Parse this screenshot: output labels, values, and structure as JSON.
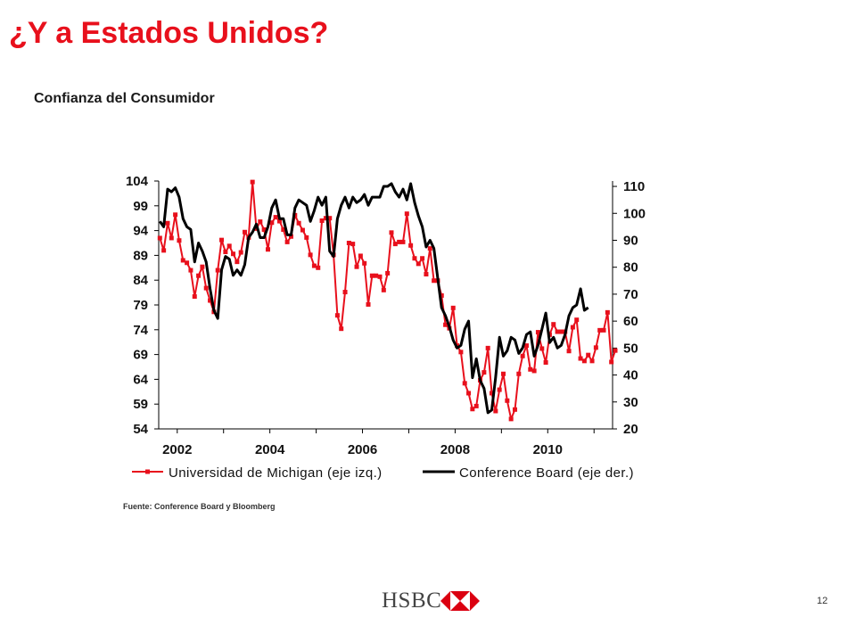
{
  "slide": {
    "title": "¿Y a Estados Unidos?",
    "subtitle": "Confianza del Consumidor",
    "source": "Fuente: Conference Board y Bloomberg",
    "page_number": "12",
    "logo_text": "HSBC",
    "logo_colors": {
      "red": "#db0011",
      "white": "#ffffff"
    }
  },
  "chart_data": {
    "type": "line",
    "title": "",
    "x_range": [
      2001.6,
      2011.4
    ],
    "x_ticks": [
      "2002",
      "2004",
      "2006",
      "2008",
      "2010"
    ],
    "y_left": {
      "ticks": [
        "104",
        "99",
        "94",
        "89",
        "84",
        "79",
        "74",
        "69",
        "64",
        "59",
        "54"
      ],
      "range": [
        54,
        104
      ]
    },
    "y_right": {
      "ticks": [
        "110",
        "100",
        "90",
        "80",
        "70",
        "60",
        "50",
        "40",
        "30",
        "20"
      ],
      "range": [
        20,
        112
      ]
    },
    "legend_position": "bottom",
    "series": [
      {
        "name": "Universidad de Michigan (eje izq.)",
        "axis": "left",
        "color": "#e8101c",
        "marker": "square",
        "x_start": 2001.625,
        "x_step": 0.08333,
        "values": [
          92.5,
          90.0,
          95.5,
          92.5,
          97.2,
          92.0,
          88.0,
          87.5,
          86.0,
          80.7,
          84.9,
          86.7,
          82.4,
          79.9,
          77.6,
          86.0,
          92.1,
          89.7,
          90.9,
          89.3,
          87.7,
          89.6,
          93.7,
          92.6,
          103.8,
          94.4,
          95.8,
          94.2,
          90.2,
          95.6,
          96.7,
          95.9,
          94.2,
          91.7,
          92.8,
          97.1,
          95.5,
          94.1,
          92.6,
          89.1,
          86.9,
          86.5,
          96.0,
          96.5,
          96.5,
          89.1,
          76.9,
          74.2,
          81.6,
          91.5,
          91.3,
          86.7,
          88.9,
          87.4,
          79.1,
          84.9,
          84.9,
          84.7,
          82.0,
          85.4,
          93.6,
          91.3,
          91.7,
          91.7,
          97.4,
          91.0,
          88.4,
          87.3,
          88.4,
          85.2,
          90.4,
          83.9,
          83.9,
          80.9,
          75.0,
          74.3,
          78.4,
          70.8,
          69.5,
          63.2,
          61.2,
          58.0,
          58.6,
          63.8,
          65.4,
          70.3,
          61.2,
          57.6,
          61.9,
          65.1,
          59.7,
          56.0,
          57.9,
          65.1,
          68.7,
          70.8,
          66.0,
          65.7,
          73.5,
          70.2,
          67.4,
          73.0,
          75.1,
          73.6,
          73.6,
          73.6,
          69.7,
          74.5,
          76.0,
          68.2,
          67.7,
          68.9,
          67.7,
          70.4,
          73.9,
          73.9,
          77.5,
          67.5,
          69.8
        ]
      },
      {
        "name": "Conference Board (eje der.)",
        "axis": "right",
        "color": "#000000",
        "marker": "none",
        "x_start": 2001.625,
        "x_step": 0.08333,
        "values": [
          97.0,
          95.0,
          109.0,
          108.0,
          109.5,
          106.0,
          98.0,
          95.0,
          94.0,
          82.0,
          89.0,
          86.0,
          82.0,
          72.0,
          64.0,
          61.0,
          79.0,
          84.0,
          83.0,
          77.0,
          79.0,
          77.0,
          81.0,
          91.0,
          93.0,
          96.0,
          91.0,
          91.0,
          95.0,
          102.0,
          105.0,
          98.0,
          98.0,
          92.0,
          92.0,
          102.0,
          105.0,
          104.0,
          103.0,
          97.0,
          101.0,
          106.0,
          103.0,
          106.0,
          86.0,
          84.0,
          98.0,
          103.0,
          106.0,
          102.0,
          106.0,
          104.0,
          105.0,
          107.0,
          103.0,
          106.0,
          106.0,
          106.0,
          110.0,
          110.0,
          111.0,
          108.0,
          106.0,
          109.0,
          105.0,
          111.0,
          104.0,
          99.0,
          95.0,
          87.5,
          90.0,
          87.0,
          76.0,
          65.0,
          62.0,
          58.0,
          53.0,
          50.0,
          51.0,
          57.0,
          60.0,
          39.0,
          46.0,
          38.0,
          35.0,
          26.0,
          27.0,
          39.0,
          54.0,
          47.0,
          49.0,
          54.0,
          53.0,
          48.0,
          50.0,
          55.0,
          56.0,
          47.0,
          51.0,
          57.0,
          63.0,
          52.0,
          54.0,
          50.0,
          51.0,
          55.0,
          62.0,
          65.0,
          66.0,
          72.0,
          64.0,
          65.0
        ]
      }
    ]
  }
}
